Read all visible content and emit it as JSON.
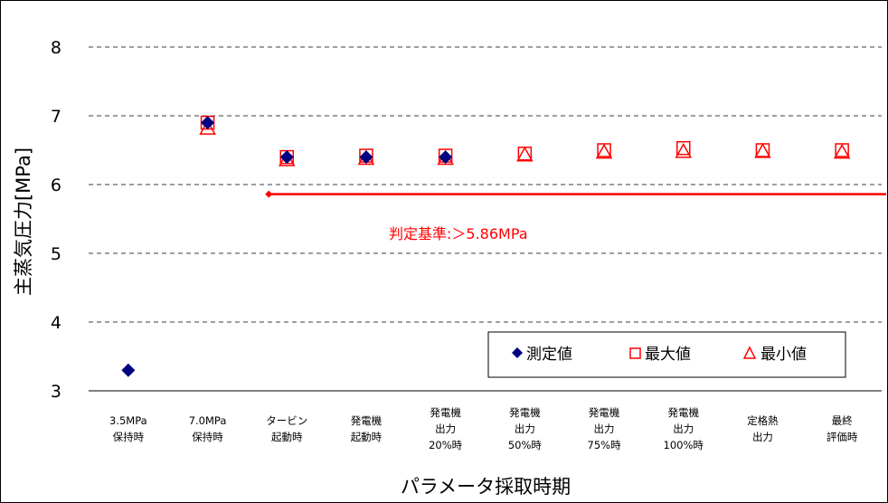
{
  "chart_data": {
    "type": "scatter",
    "title": "",
    "xlabel": "パラメータ採取時期",
    "ylabel": "主蒸気圧力[MPa]",
    "ylim": [
      3,
      8
    ],
    "yticks": [
      3,
      4,
      5,
      6,
      7,
      8
    ],
    "grid": "horizontal-dashed",
    "legend_position": "bottom-right",
    "categories": [
      [
        "3.5MPa",
        "保持時"
      ],
      [
        "7.0MPa",
        "保持時"
      ],
      [
        "タービン",
        "起動時"
      ],
      [
        "発電機",
        "起動時"
      ],
      [
        "発電機",
        "出力",
        "20%時"
      ],
      [
        "発電機",
        "出力",
        "50%時"
      ],
      [
        "発電機",
        "出力",
        "75%時"
      ],
      [
        "発電機",
        "出力",
        "100%時"
      ],
      [
        "定格熱",
        "出力"
      ],
      [
        "最終",
        "評価時"
      ]
    ],
    "series": [
      {
        "name": "測定値",
        "marker": "diamond",
        "color": "#000080",
        "values": [
          3.3,
          6.9,
          6.4,
          6.4,
          6.4,
          null,
          null,
          null,
          null,
          null
        ]
      },
      {
        "name": "最大値",
        "marker": "square",
        "color": "#ff0000",
        "values": [
          null,
          6.9,
          6.4,
          6.42,
          6.42,
          6.45,
          6.5,
          6.53,
          6.5,
          6.5
        ]
      },
      {
        "name": "最小値",
        "marker": "triangle",
        "color": "#ff0000",
        "values": [
          null,
          6.82,
          6.36,
          6.38,
          6.38,
          6.43,
          6.47,
          6.48,
          6.48,
          6.47
        ]
      }
    ],
    "reference": {
      "label": "判定基準:＞5.86MPa",
      "value": 5.86,
      "start_category": 2,
      "color": "#ff0000"
    }
  }
}
